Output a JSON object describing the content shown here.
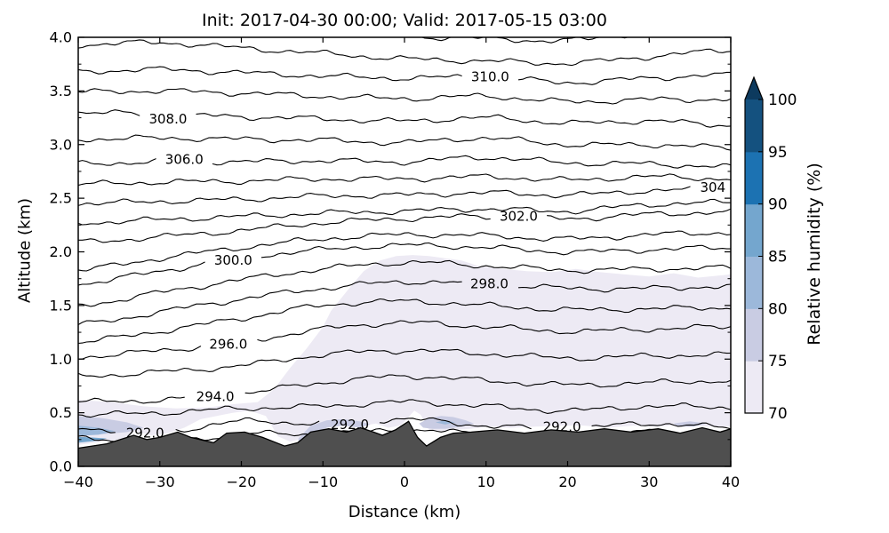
{
  "chart_data": {
    "type": "contour",
    "title": "Init: 2017-04-30 00:00; Valid: 2017-05-15 03:00",
    "xlabel": "Distance (km)",
    "ylabel": "Altitude (km)",
    "xlim": [
      -40,
      40
    ],
    "ylim": [
      0,
      4
    ],
    "xticks": {
      "values": [
        -40,
        -30,
        -20,
        -10,
        0,
        10,
        20,
        30,
        40
      ],
      "labels": [
        "−40",
        "−30",
        "−20",
        "−10",
        "0",
        "10",
        "20",
        "30",
        "40"
      ]
    },
    "yticks": {
      "values": [
        0,
        0.5,
        1,
        1.5,
        2,
        2.5,
        3,
        3.5,
        4
      ],
      "labels": [
        "0.0",
        "0.5",
        "1.0",
        "1.5",
        "2.0",
        "2.5",
        "3.0",
        "3.5",
        "4.0"
      ]
    },
    "y_minor_step": 0.25,
    "grid": false,
    "contour_line_color": "#000000",
    "contour_interval": 1,
    "x_control": [
      -40,
      -30,
      -20,
      -10,
      0,
      10,
      20,
      30,
      40
    ],
    "levels": [
      {
        "value": 291,
        "alts": [
          0.26,
          0.22,
          0.3,
          0.3,
          0.34,
          0.3,
          0.29,
          0.32,
          0.3
        ],
        "labels": []
      },
      {
        "value": 292,
        "alts": [
          0.36,
          0.32,
          0.42,
          0.4,
          0.44,
          0.38,
          0.35,
          0.4,
          0.36
        ],
        "labels": [
          {
            "text": "292.0",
            "x": -31.8,
            "alt": 0.31
          },
          {
            "text": "292.0",
            "x": -6.7,
            "alt": 0.39
          },
          {
            "text": "292.0",
            "x": 19.3,
            "alt": 0.37
          }
        ]
      },
      {
        "value": 293,
        "alts": [
          0.48,
          0.5,
          0.54,
          0.56,
          0.6,
          0.56,
          0.52,
          0.56,
          0.55
        ],
        "labels": []
      },
      {
        "value": 294,
        "alts": [
          0.6,
          0.62,
          0.68,
          0.78,
          0.84,
          0.8,
          0.76,
          0.78,
          0.8
        ],
        "labels": [
          {
            "text": "294.0",
            "x": -23.2,
            "alt": 0.65
          }
        ]
      },
      {
        "value": 295,
        "alts": [
          0.84,
          0.88,
          0.94,
          1.04,
          1.08,
          1.05,
          1.01,
          1.03,
          1.04
        ],
        "labels": []
      },
      {
        "value": 296,
        "alts": [
          1.02,
          1.08,
          1.16,
          1.28,
          1.34,
          1.3,
          1.26,
          1.28,
          1.3
        ],
        "labels": [
          {
            "text": "296.0",
            "x": -21.6,
            "alt": 1.14
          }
        ]
      },
      {
        "value": 297,
        "alts": [
          1.16,
          1.26,
          1.38,
          1.5,
          1.54,
          1.5,
          1.46,
          1.47,
          1.48
        ],
        "labels": []
      },
      {
        "value": 298,
        "alts": [
          1.32,
          1.44,
          1.56,
          1.66,
          1.72,
          1.7,
          1.66,
          1.66,
          1.68
        ],
        "labels": [
          {
            "text": "298.0",
            "x": 10.4,
            "alt": 1.7
          }
        ]
      },
      {
        "value": 299,
        "alts": [
          1.5,
          1.62,
          1.74,
          1.84,
          1.9,
          1.87,
          1.83,
          1.84,
          1.85
        ],
        "labels": []
      },
      {
        "value": 300,
        "alts": [
          1.7,
          1.82,
          1.94,
          2.02,
          2.06,
          2.04,
          2.0,
          2.02,
          2.04
        ],
        "labels": [
          {
            "text": "300.0",
            "x": -21.0,
            "alt": 1.92
          }
        ]
      },
      {
        "value": 301,
        "alts": [
          1.83,
          1.94,
          2.04,
          2.12,
          2.16,
          2.15,
          2.12,
          2.16,
          2.18
        ],
        "labels": []
      },
      {
        "value": 302,
        "alts": [
          2.09,
          2.14,
          2.2,
          2.27,
          2.31,
          2.33,
          2.31,
          2.35,
          2.37
        ],
        "labels": [
          {
            "text": "302.0",
            "x": 14.0,
            "alt": 2.33
          }
        ]
      },
      {
        "value": 303,
        "alts": [
          2.27,
          2.3,
          2.33,
          2.36,
          2.38,
          2.4,
          2.38,
          2.44,
          2.46
        ],
        "labels": []
      },
      {
        "value": 304,
        "alts": [
          2.45,
          2.47,
          2.49,
          2.52,
          2.53,
          2.55,
          2.53,
          2.57,
          2.58
        ],
        "labels": [
          {
            "text": "304",
            "x": 37.8,
            "alt": 2.6
          }
        ]
      },
      {
        "value": 305,
        "alts": [
          2.63,
          2.65,
          2.66,
          2.68,
          2.68,
          2.7,
          2.67,
          2.7,
          2.68
        ],
        "labels": []
      },
      {
        "value": 306,
        "alts": [
          2.82,
          2.84,
          2.84,
          2.85,
          2.84,
          2.88,
          2.83,
          2.82,
          2.79
        ],
        "labels": [
          {
            "text": "306.0",
            "x": -27.0,
            "alt": 2.86
          }
        ]
      },
      {
        "value": 307,
        "alts": [
          3.05,
          3.06,
          3.05,
          3.04,
          3.02,
          3.06,
          3.0,
          3.0,
          2.97
        ],
        "labels": []
      },
      {
        "value": 308,
        "alts": [
          3.3,
          3.28,
          3.26,
          3.24,
          3.22,
          3.25,
          3.2,
          3.22,
          3.18
        ],
        "labels": [
          {
            "text": "308.0",
            "x": -29.0,
            "alt": 3.24
          }
        ]
      },
      {
        "value": 309,
        "alts": [
          3.49,
          3.5,
          3.48,
          3.45,
          3.43,
          3.45,
          3.4,
          3.42,
          3.42
        ],
        "labels": []
      },
      {
        "value": 310,
        "alts": [
          3.68,
          3.7,
          3.67,
          3.64,
          3.62,
          3.63,
          3.58,
          3.62,
          3.65
        ],
        "labels": [
          {
            "text": "310.0",
            "x": 10.5,
            "alt": 3.63
          }
        ]
      },
      {
        "value": 311,
        "alts": [
          3.93,
          3.95,
          3.9,
          3.85,
          3.8,
          3.78,
          3.76,
          3.82,
          3.88
        ],
        "labels": []
      },
      {
        "value": 312,
        "alts": [
          4.1,
          4.12,
          4.08,
          4.04,
          4.01,
          3.99,
          3.97,
          4.05,
          4.08
        ],
        "labels": []
      }
    ],
    "fills": [
      {
        "rh": "70-75",
        "color": "#EDEAF4",
        "points": [
          [
            -40,
            0.62
          ],
          [
            -36,
            0.6
          ],
          [
            -32,
            0.56
          ],
          [
            -28,
            0.54
          ],
          [
            -24,
            0.55
          ],
          [
            -21,
            0.58
          ],
          [
            -18,
            0.6
          ],
          [
            -16,
            0.72
          ],
          [
            -14,
            0.92
          ],
          [
            -12,
            1.1
          ],
          [
            -10,
            1.3
          ],
          [
            -9,
            1.45
          ],
          [
            -7,
            1.64
          ],
          [
            -5,
            1.82
          ],
          [
            -3,
            1.92
          ],
          [
            -1,
            1.96
          ],
          [
            1,
            1.97
          ],
          [
            3,
            1.96
          ],
          [
            5,
            1.94
          ],
          [
            7,
            1.92
          ],
          [
            9,
            1.87
          ],
          [
            12,
            1.84
          ],
          [
            15,
            1.82
          ],
          [
            18,
            1.81
          ],
          [
            21,
            1.84
          ],
          [
            24,
            1.81
          ],
          [
            27,
            1.79
          ],
          [
            30,
            1.77
          ],
          [
            33,
            1.8
          ],
          [
            36,
            1.76
          ],
          [
            40,
            1.79
          ],
          [
            40,
            0.37
          ],
          [
            37,
            0.37
          ],
          [
            34,
            0.39
          ],
          [
            31,
            0.37
          ],
          [
            28,
            0.38
          ],
          [
            25,
            0.36
          ],
          [
            22,
            0.38
          ],
          [
            19,
            0.38
          ],
          [
            16,
            0.37
          ],
          [
            13,
            0.36
          ],
          [
            10,
            0.37
          ],
          [
            8,
            0.35
          ],
          [
            6,
            0.34
          ],
          [
            4.5,
            0.33
          ],
          [
            3,
            0.34
          ],
          [
            2,
            0.48
          ],
          [
            1.2,
            0.52
          ],
          [
            0.5,
            0.46
          ],
          [
            -0.5,
            0.38
          ],
          [
            -2,
            0.36
          ],
          [
            -3.5,
            0.4
          ],
          [
            -5,
            0.38
          ],
          [
            -7,
            0.4
          ],
          [
            -9,
            0.38
          ],
          [
            -11,
            0.36
          ],
          [
            -12.5,
            0.26
          ],
          [
            -14,
            0.23
          ],
          [
            -15.5,
            0.28
          ],
          [
            -17,
            0.47
          ],
          [
            -19,
            0.52
          ],
          [
            -21,
            0.5
          ],
          [
            -23,
            0.47
          ],
          [
            -25,
            0.44
          ],
          [
            -27,
            0.36
          ],
          [
            -29,
            0.31
          ],
          [
            -31,
            0.29
          ],
          [
            -33,
            0.33
          ],
          [
            -34.5,
            0.26
          ],
          [
            -36,
            0.24
          ],
          [
            -38,
            0.22
          ],
          [
            -40,
            0.2
          ]
        ]
      },
      {
        "rh": "75-80",
        "color": "#C9CCE3",
        "points": [
          [
            -40,
            0.47
          ],
          [
            -37,
            0.45
          ],
          [
            -34,
            0.41
          ],
          [
            -32,
            0.36
          ],
          [
            -34,
            0.32
          ],
          [
            -37,
            0.3
          ],
          [
            -40,
            0.29
          ]
        ]
      },
      {
        "rh": "75-80",
        "color": "#C9CCE3",
        "points": [
          [
            -13,
            0.26
          ],
          [
            -11.5,
            0.38
          ],
          [
            -9.5,
            0.43
          ],
          [
            -7.5,
            0.44
          ],
          [
            -5.5,
            0.42
          ],
          [
            -4.2,
            0.39
          ],
          [
            -5.5,
            0.36
          ],
          [
            -7.5,
            0.38
          ],
          [
            -9.5,
            0.36
          ],
          [
            -11.5,
            0.3
          ],
          [
            -13,
            0.22
          ]
        ]
      },
      {
        "rh": "75-80",
        "color": "#C9CCE3",
        "points": [
          [
            1.8,
            0.4
          ],
          [
            3,
            0.45
          ],
          [
            4.5,
            0.47
          ],
          [
            6,
            0.46
          ],
          [
            7.5,
            0.43
          ],
          [
            8.5,
            0.4
          ],
          [
            7,
            0.37
          ],
          [
            5,
            0.35
          ],
          [
            3.5,
            0.35
          ],
          [
            2.3,
            0.36
          ]
        ]
      },
      {
        "rh": "75-80",
        "color": "#C9CCE3",
        "points": [
          [
            33,
            0.4
          ],
          [
            35,
            0.42
          ],
          [
            37,
            0.4
          ],
          [
            35.5,
            0.37
          ],
          [
            33.5,
            0.37
          ]
        ]
      },
      {
        "rh": "80-85",
        "color": "#9CB8DA",
        "points": [
          [
            -40,
            0.38
          ],
          [
            -37.5,
            0.36
          ],
          [
            -35.5,
            0.33
          ],
          [
            -37.5,
            0.295
          ],
          [
            -40,
            0.285
          ]
        ]
      },
      {
        "rh": "80-85",
        "color": "#9CB8DA",
        "points": [
          [
            3.8,
            0.41
          ],
          [
            5,
            0.43
          ],
          [
            6.2,
            0.41
          ],
          [
            5,
            0.39
          ]
        ]
      },
      {
        "rh": "85-90",
        "color": "#74A6CE",
        "points": [
          [
            -40,
            0.22
          ],
          [
            -37.5,
            0.24
          ],
          [
            -36.5,
            0.26
          ],
          [
            -38.5,
            0.27
          ],
          [
            -40,
            0.275
          ]
        ]
      }
    ],
    "terrain": {
      "color": "#4F4F4F",
      "edge_color": "#000000",
      "points": [
        [
          -40,
          0.17
        ],
        [
          -36.5,
          0.21
        ],
        [
          -33.2,
          0.29
        ],
        [
          -31.6,
          0.25
        ],
        [
          -30,
          0.27
        ],
        [
          -27.8,
          0.32
        ],
        [
          -26.2,
          0.27
        ],
        [
          -23.4,
          0.22
        ],
        [
          -21.8,
          0.31
        ],
        [
          -19.6,
          0.32
        ],
        [
          -17.4,
          0.27
        ],
        [
          -14.7,
          0.19
        ],
        [
          -13.1,
          0.22
        ],
        [
          -11.5,
          0.32
        ],
        [
          -9.3,
          0.35
        ],
        [
          -7.1,
          0.32
        ],
        [
          -5.4,
          0.36
        ],
        [
          -3.8,
          0.32
        ],
        [
          -2.7,
          0.29
        ],
        [
          -1.1,
          0.34
        ],
        [
          0.5,
          0.42
        ],
        [
          1.6,
          0.27
        ],
        [
          2.7,
          0.19
        ],
        [
          4.4,
          0.27
        ],
        [
          6,
          0.31
        ],
        [
          8.2,
          0.32
        ],
        [
          11.4,
          0.34
        ],
        [
          14.7,
          0.31
        ],
        [
          18,
          0.34
        ],
        [
          21.3,
          0.32
        ],
        [
          24.5,
          0.35
        ],
        [
          27.8,
          0.32
        ],
        [
          31.1,
          0.35
        ],
        [
          33.8,
          0.31
        ],
        [
          36.5,
          0.36
        ],
        [
          38.7,
          0.32
        ],
        [
          40,
          0.35
        ]
      ]
    },
    "colorbar": {
      "label": "Relative humidity (%)",
      "ticks": [
        "70",
        "75",
        "80",
        "85",
        "90",
        "95",
        "100"
      ],
      "tick_values": [
        70,
        75,
        80,
        85,
        90,
        95,
        100
      ],
      "extend": "max",
      "over_color": "#0D3A5E",
      "bins": [
        {
          "range": "70-75",
          "color": "#EDEAF4"
        },
        {
          "range": "75-80",
          "color": "#C9CCE3"
        },
        {
          "range": "80-85",
          "color": "#9CB8DA"
        },
        {
          "range": "85-90",
          "color": "#74A6CE"
        },
        {
          "range": "90-95",
          "color": "#1C72B2"
        },
        {
          "range": "95-100",
          "color": "#14517F"
        }
      ]
    }
  }
}
